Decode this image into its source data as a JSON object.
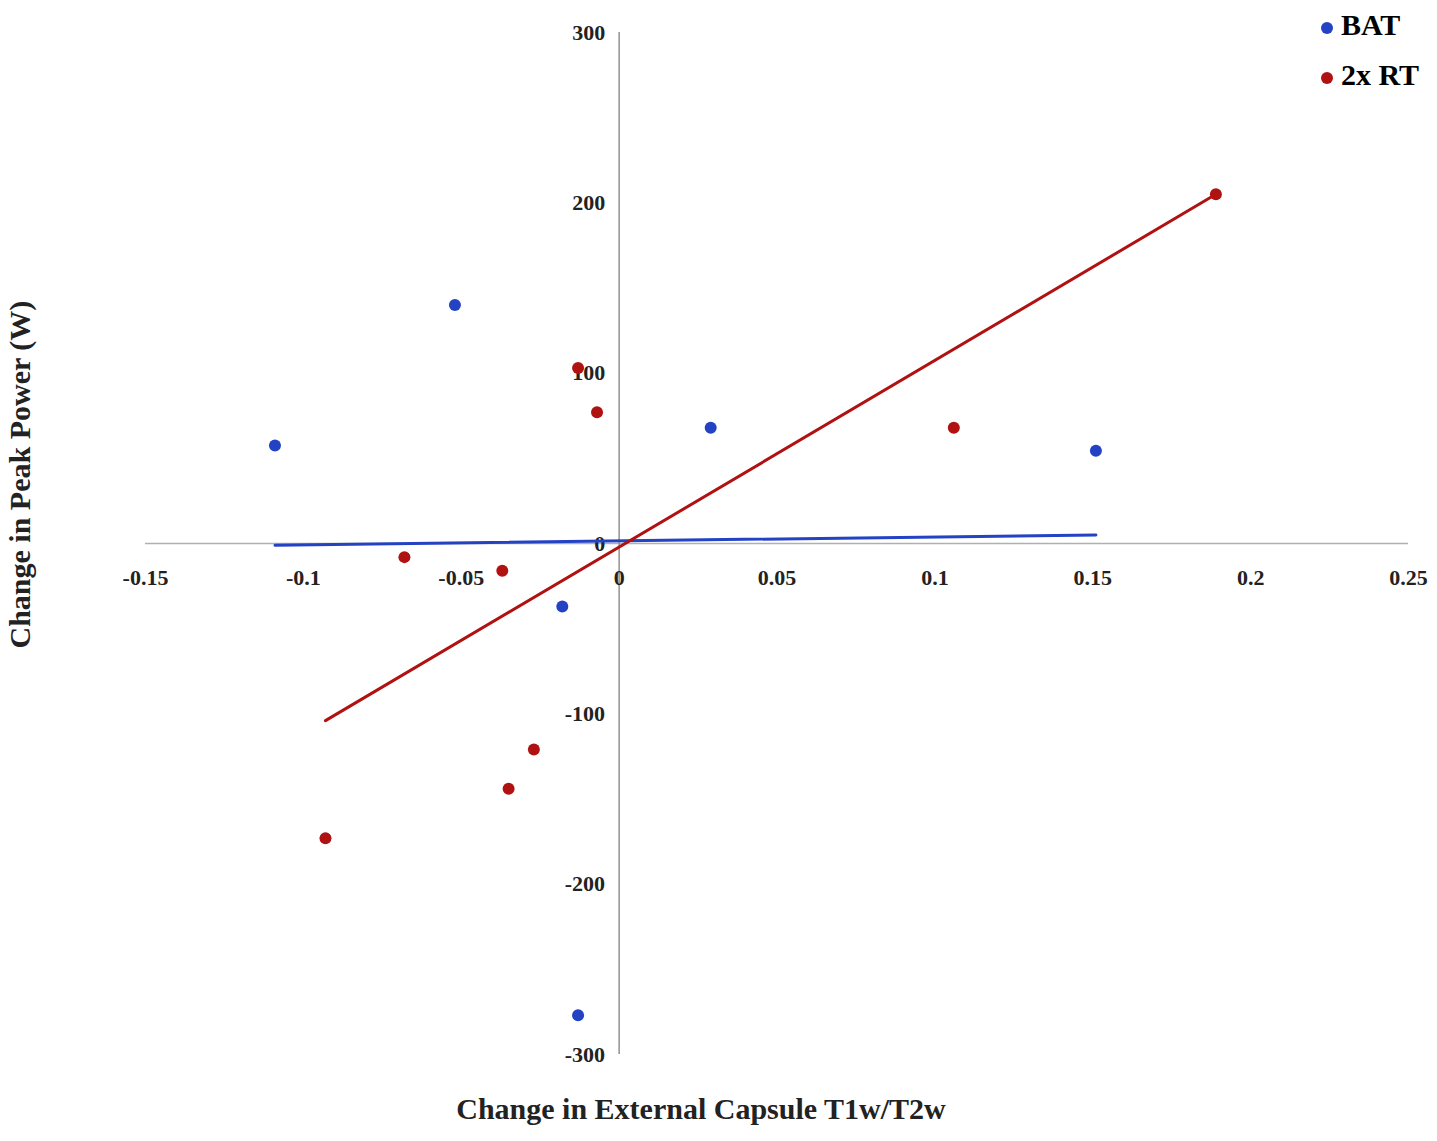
{
  "chart_data": {
    "type": "scatter",
    "x_label": "Change in External Capsule T1w/T2w",
    "y_label": "Change in Peak Power (W)",
    "xlim": [
      -0.15,
      0.25
    ],
    "xticks": [
      -0.15,
      -0.1,
      -0.05,
      0,
      0.05,
      0.1,
      0.15,
      0.2,
      0.25
    ],
    "ylim": [
      -300,
      300
    ],
    "yticks": [
      -300,
      -200,
      -100,
      0,
      100,
      200,
      300
    ],
    "legend": "top-right",
    "series": [
      {
        "name": "BAT",
        "color": "#2343c4",
        "marker": "circle",
        "x": [
          -0.109,
          -0.052,
          0.029,
          0.151,
          -0.018,
          -0.013
        ],
        "values": [
          57.5,
          140,
          68,
          54.5,
          -37,
          -277
        ],
        "trendline": {
          "x": [
            -0.109,
            0.151
          ],
          "y": [
            -1,
            5
          ]
        }
      },
      {
        "name": "2x RT",
        "color": "#b01212",
        "marker": "circle",
        "x": [
          0.189,
          0.106,
          -0.007,
          -0.013,
          -0.068,
          -0.037,
          -0.035,
          -0.027,
          -0.093
        ],
        "values": [
          205,
          68,
          77,
          103,
          -8,
          -16,
          -144,
          -121,
          -173
        ],
        "trendline": {
          "x": [
            -0.093,
            0.189
          ],
          "y": [
            -104,
            205
          ]
        }
      }
    ]
  }
}
